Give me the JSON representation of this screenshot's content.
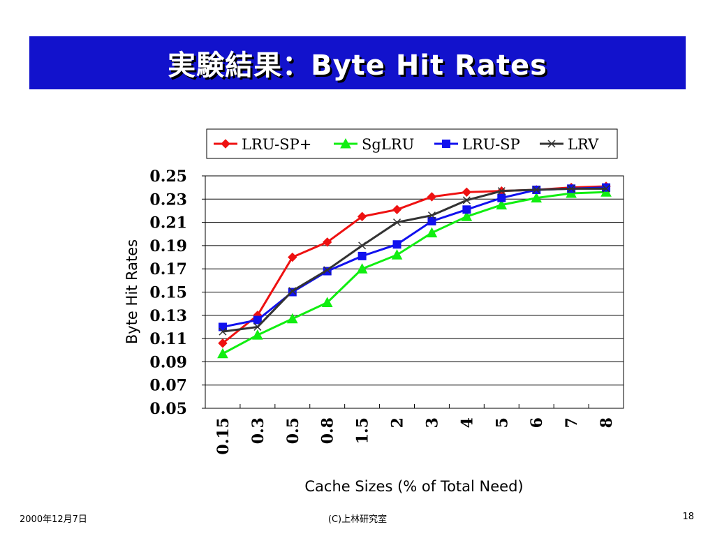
{
  "slide": {
    "title": "実験結果：Byte Hit Rates",
    "footer_left": "2000年12月7日",
    "footer_center": "(C)上林研究室",
    "footer_right": "18"
  },
  "colors": {
    "title_bar": "#1212cc",
    "title_text": "#ffffff"
  },
  "chart_data": {
    "type": "line",
    "title": "",
    "xlabel": "Cache Sizes (% of Total Need)",
    "ylabel": "Byte Hit Rates",
    "categories": [
      "0.15",
      "0.3",
      "0.5",
      "0.8",
      "1.5",
      "2",
      "3",
      "4",
      "5",
      "6",
      "7",
      "8"
    ],
    "ylim": [
      0.05,
      0.25
    ],
    "yticks": [
      "0.25",
      "0.23",
      "0.21",
      "0.19",
      "0.17",
      "0.15",
      "0.13",
      "0.11",
      "0.09",
      "0.07",
      "0.05"
    ],
    "grid": "horizontal",
    "legend_position": "top",
    "series": [
      {
        "name": "LRU-SP+",
        "color": "#ee1111",
        "marker": "diamond",
        "values": [
          0.106,
          0.13,
          0.18,
          0.193,
          0.215,
          0.221,
          0.232,
          0.236,
          0.237,
          0.238,
          0.24,
          0.241
        ]
      },
      {
        "name": "SgLRU",
        "color": "#11ee11",
        "marker": "triangle",
        "values": [
          0.097,
          0.113,
          0.127,
          0.141,
          0.17,
          0.182,
          0.201,
          0.215,
          0.225,
          0.231,
          0.235,
          0.236
        ]
      },
      {
        "name": "LRU-SP",
        "color": "#1111ee",
        "marker": "square",
        "values": [
          0.12,
          0.126,
          0.15,
          0.168,
          0.181,
          0.191,
          0.211,
          0.221,
          0.231,
          0.238,
          0.239,
          0.24
        ]
      },
      {
        "name": "LRV",
        "color": "#333333",
        "marker": "cross",
        "values": [
          0.116,
          0.12,
          0.151,
          0.169,
          0.19,
          0.21,
          0.216,
          0.229,
          0.237,
          0.238,
          0.239,
          0.239
        ]
      }
    ]
  }
}
